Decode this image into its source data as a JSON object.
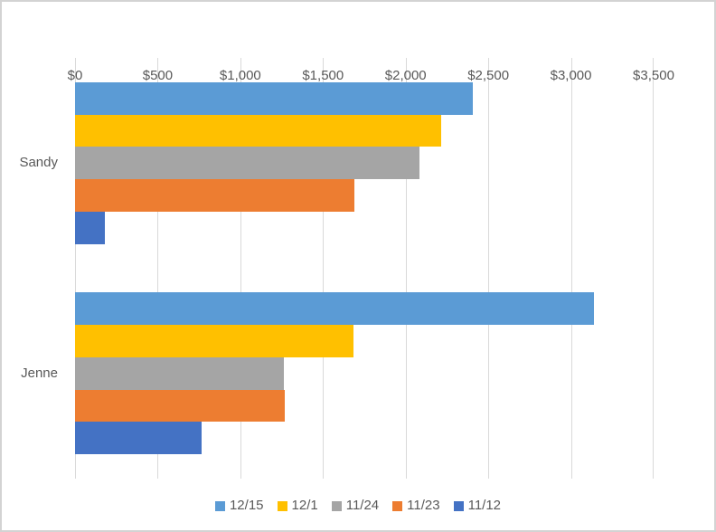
{
  "chart": {
    "background_color": "#FFFFFF",
    "border_color": "#D3D3D3",
    "gridline_color": "#D9D9D9",
    "text_color": "#595959"
  },
  "chart_data": {
    "type": "bar",
    "orientation": "horizontal",
    "title": "",
    "xlabel": "",
    "ylabel": "",
    "categories": [
      "Sandy",
      "Jenne"
    ],
    "series": [
      {
        "name": "12/15",
        "color": "#5B9BD5",
        "values": [
          2405,
          3140
        ]
      },
      {
        "name": "12/1",
        "color": "#FFC000",
        "values": [
          2215,
          1685
        ]
      },
      {
        "name": "11/24",
        "color": "#A5A5A5",
        "values": [
          2085,
          1265
        ]
      },
      {
        "name": "11/23",
        "color": "#ED7D31",
        "values": [
          1690,
          1270
        ]
      },
      {
        "name": "11/12",
        "color": "#4472C4",
        "values": [
          180,
          765
        ]
      }
    ],
    "series_display_note": "series listed top-to-bottom as drawn within each category group",
    "value_axis": {
      "position": "top",
      "min": 0,
      "max": 3500,
      "step": 500,
      "tick_labels": [
        "$0",
        "$500",
        "$1,000",
        "$1,500",
        "$2,000",
        "$2,500",
        "$3,000",
        "$3,500"
      ]
    },
    "gridlines": true,
    "legend": {
      "position": "bottom",
      "entries": [
        "12/15",
        "12/1",
        "11/24",
        "11/23",
        "11/12"
      ]
    }
  }
}
